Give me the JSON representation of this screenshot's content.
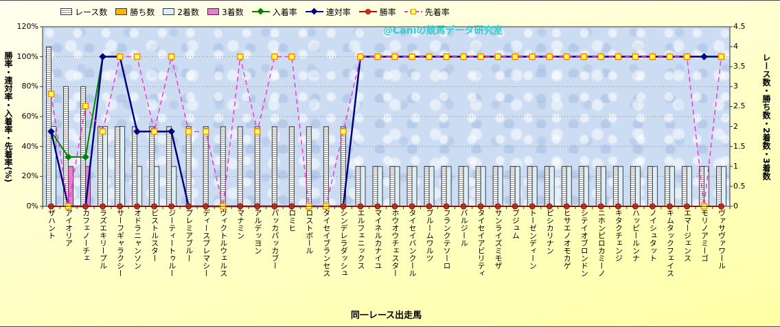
{
  "watermark": "@Caniの競馬データ研究室",
  "legend": {
    "items": [
      {
        "key": "races",
        "label": "レース数",
        "marker": "bar",
        "fill": "striped"
      },
      {
        "key": "wins",
        "label": "勝ち数",
        "marker": "bar",
        "fill": "#FFB400"
      },
      {
        "key": "seconds",
        "label": "2着数",
        "marker": "bar",
        "fill": "#DCEFF8"
      },
      {
        "key": "thirds",
        "label": "3着数",
        "marker": "bar",
        "fill": "#EE7BD2"
      },
      {
        "key": "place-rate",
        "label": "入着率",
        "marker": "diamond",
        "color": "#008000",
        "marker_fill": "#008000"
      },
      {
        "key": "quinella-rate",
        "label": "連対率",
        "marker": "diamond",
        "color": "#000080",
        "marker_fill": "#000080"
      },
      {
        "key": "win-rate",
        "label": "勝率",
        "marker": "circle",
        "color": "#C00000",
        "marker_fill": "#DD2B1C",
        "marker_stroke": "#7E120B"
      },
      {
        "key": "ahead-rate",
        "label": "先着率",
        "marker": "square",
        "dash": true,
        "color": "#FF33CC",
        "marker_fill": "#FFFF55",
        "marker_stroke": "#FF8C00"
      }
    ]
  },
  "chart_data": {
    "type": "bar+line combo, dual axis",
    "title": "",
    "xlabel": "同一レース出走馬",
    "ylabel_left": "勝率・連対率・入着率・先着率(%)",
    "ylabel_right": "レース数・勝ち数・2着数・3着数",
    "y_left": {
      "min": 0,
      "max": 120,
      "ticks": [
        "0%",
        "20%",
        "40%",
        "60%",
        "80%",
        "100%",
        "120%"
      ]
    },
    "y_right": {
      "min": 0,
      "max": 4.5,
      "ticks": [
        "0",
        "0.5",
        "1",
        "1.5",
        "2",
        "2.5",
        "3",
        "3.5",
        "4",
        "4.5"
      ]
    },
    "grid": true,
    "legend_position": "top",
    "categories": [
      "ザハント",
      "アイオリア",
      "カフェノーチェ",
      "ラズエキリープル",
      "サーフギャラクシー",
      "オドラニャンソン",
      "ビストルスター",
      "ジーティートゥルー",
      "プレミアブルー",
      "ディースプレマシー",
      "ヴィクトルウェルス",
      "マナミン",
      "アルデッヨン",
      "パッカパッカブー",
      "ロミヒ",
      "ロストボール",
      "タイセイブランセス",
      "シンデレラダッシュ",
      "エルフェニックス",
      "マイネルカナイユ",
      "ホウオウチェスター",
      "タイセイバンクール",
      "ブルームワルツ",
      "フランクテソーロ",
      "バルジール",
      "タイセイアビリティ",
      "サンライズミモザ",
      "ブジュム",
      "トーゼンディーン",
      "ピシカリナン",
      "ヒサエノオモカゲ",
      "シテイオブロンドン",
      "ニホンピロカミーノ",
      "キタクチェンジ",
      "ハッピールンナ",
      "ノイシュタット",
      "キムタックフェイス",
      "エマージェンス",
      "モリノアミーゴ",
      "ヴァサヴァワール"
    ],
    "bar_series": [
      {
        "key": "races",
        "name": "レース数",
        "axis": "right",
        "fill": "striped",
        "stroke": "#404040",
        "values": [
          4,
          3,
          3,
          2,
          2,
          2,
          2,
          2,
          2,
          2,
          2,
          2,
          2,
          2,
          2,
          2,
          2,
          2,
          1,
          1,
          1,
          1,
          1,
          1,
          1,
          1,
          1,
          1,
          1,
          1,
          1,
          1,
          1,
          1,
          1,
          1,
          1,
          1,
          1,
          1
        ]
      },
      {
        "key": "wins",
        "name": "勝ち数",
        "axis": "right",
        "fill": "#FFB400",
        "stroke": "#404040",
        "values": [
          0,
          0,
          0,
          0,
          0,
          0,
          0,
          0,
          0,
          0,
          0,
          0,
          0,
          0,
          0,
          0,
          0,
          0,
          0,
          0,
          0,
          0,
          0,
          0,
          0,
          0,
          0,
          0,
          0,
          0,
          0,
          0,
          0,
          0,
          0,
          0,
          0,
          0,
          0,
          0
        ]
      },
      {
        "key": "seconds",
        "name": "2着数",
        "axis": "right",
        "fill": "#DCEFF8",
        "stroke": "#404040",
        "values": [
          2,
          0,
          0,
          2,
          2,
          1,
          1,
          1,
          0,
          0,
          0,
          0,
          0,
          0,
          0,
          0,
          0,
          0,
          1,
          1,
          1,
          1,
          1,
          1,
          1,
          1,
          1,
          1,
          1,
          1,
          1,
          1,
          1,
          1,
          1,
          1,
          1,
          1,
          1,
          1
        ]
      },
      {
        "key": "thirds",
        "name": "3着数",
        "axis": "right",
        "fill": "#EE7BD2",
        "stroke": "#404040",
        "values": [
          0,
          1,
          1,
          0,
          0,
          0,
          0,
          0,
          0,
          0,
          0,
          0,
          0,
          0,
          0,
          0,
          0,
          0,
          0,
          0,
          0,
          0,
          0,
          0,
          0,
          0,
          0,
          0,
          0,
          0,
          0,
          0,
          0,
          0,
          0,
          0,
          0,
          0,
          0,
          0
        ]
      }
    ],
    "line_series": [
      {
        "key": "place-rate",
        "name": "入着率",
        "axis": "left",
        "color": "#008000",
        "width": 2,
        "marker": "diamond",
        "marker_fill": "#008000",
        "values": [
          50,
          33,
          33,
          100,
          100,
          50,
          50,
          50,
          0,
          0,
          0,
          0,
          0,
          0,
          0,
          0,
          0,
          0,
          100,
          100,
          100,
          100,
          100,
          100,
          100,
          100,
          100,
          100,
          100,
          100,
          100,
          100,
          100,
          100,
          100,
          100,
          100,
          100,
          100,
          100
        ]
      },
      {
        "key": "quinella-rate",
        "name": "連対率",
        "axis": "left",
        "color": "#000080",
        "width": 2.5,
        "marker": "diamond",
        "marker_fill": "#000080",
        "values": [
          50,
          0,
          0,
          100,
          100,
          50,
          50,
          50,
          0,
          0,
          0,
          0,
          0,
          0,
          0,
          0,
          0,
          0,
          100,
          100,
          100,
          100,
          100,
          100,
          100,
          100,
          100,
          100,
          100,
          100,
          100,
          100,
          100,
          100,
          100,
          100,
          100,
          100,
          100,
          100
        ]
      },
      {
        "key": "win-rate",
        "name": "勝率",
        "axis": "left",
        "color": "#C00000",
        "width": 2,
        "marker": "circle",
        "marker_fill": "#DD2B1C",
        "marker_stroke": "#7E120B",
        "values": [
          0,
          0,
          0,
          0,
          0,
          0,
          0,
          0,
          0,
          0,
          0,
          0,
          0,
          0,
          0,
          0,
          0,
          0,
          0,
          0,
          0,
          0,
          0,
          0,
          0,
          0,
          0,
          0,
          0,
          0,
          0,
          0,
          0,
          0,
          0,
          0,
          0,
          0,
          0,
          0
        ]
      },
      {
        "key": "ahead-rate",
        "name": "先着率",
        "axis": "left",
        "color": "#FF33CC",
        "width": 1.5,
        "dash": "7 5",
        "marker": "square",
        "marker_fill": "#FFFF55",
        "marker_stroke": "#FF8C00",
        "values": [
          75,
          0,
          67,
          50,
          100,
          100,
          50,
          100,
          50,
          50,
          0,
          100,
          50,
          100,
          100,
          0,
          0,
          50,
          100,
          100,
          100,
          100,
          100,
          100,
          100,
          100,
          100,
          100,
          100,
          100,
          100,
          100,
          100,
          100,
          100,
          100,
          100,
          100,
          0,
          100
        ]
      }
    ]
  }
}
